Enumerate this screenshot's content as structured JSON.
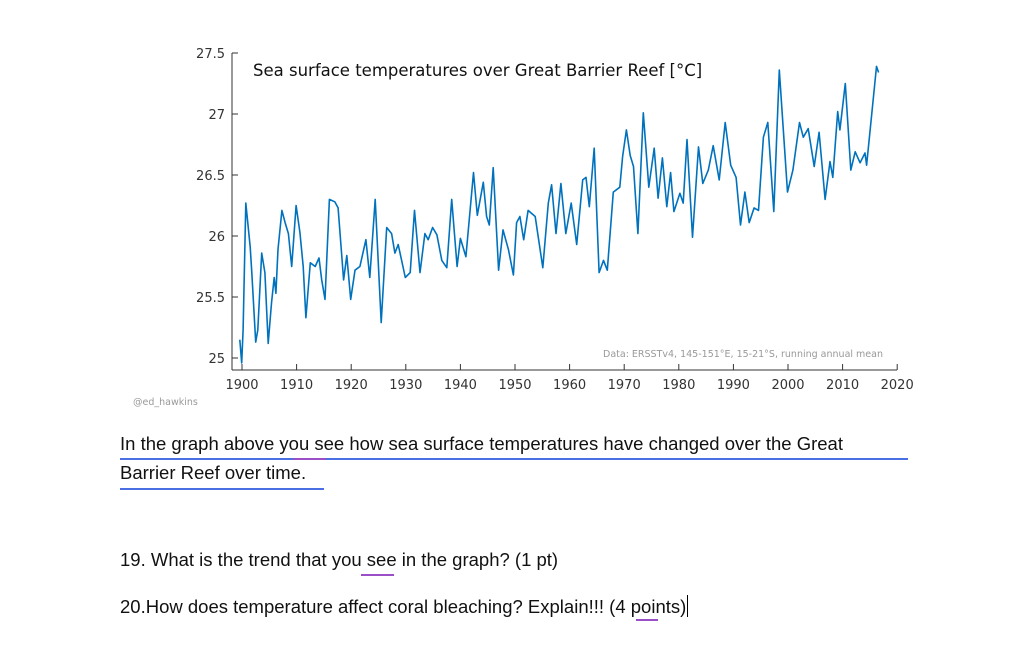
{
  "document": {
    "intro_line1": "In the graph above you see how sea surface temperatures have changed over the Great",
    "intro_line2": "Barrier Reef over time.",
    "question19": "19.  What is the trend that you see in the graph?  (1 pt)",
    "question20": "20.How does temperature affect coral bleaching?  Explain!!! (4 points)",
    "colors": {
      "grammar_underline": "#4a6fe3",
      "spelling_underline": "#9b4fc7"
    }
  },
  "chart_data": {
    "type": "line",
    "title": "Sea surface temperatures over Great Barrier Reef  [°C]",
    "note": "Data: ERSSTv4, 145-151°E, 15-21°S, running annual mean",
    "credit": "@ed_hawkins",
    "xlabel": "",
    "ylabel": "",
    "xlim": [
      1898.2,
      2020
    ],
    "ylim": [
      24.9,
      27.5
    ],
    "xticks": [
      "1900",
      "1910",
      "1920",
      "1930",
      "1940",
      "1950",
      "1960",
      "1970",
      "1980",
      "1990",
      "2000",
      "2010",
      "2020"
    ],
    "yticks": [
      "25",
      "25.5",
      "26",
      "26.5",
      "27",
      "27.5"
    ],
    "grid": false,
    "line_color": "#0072bd",
    "x": [
      1899.6,
      1899.95,
      1900.2,
      1900.7,
      1901.5,
      1901.8,
      1902.5,
      1902.9,
      1903.6,
      1904.2,
      1904.8,
      1905.4,
      1905.9,
      1906.2,
      1906.6,
      1907.3,
      1907.9,
      1908.5,
      1909.1,
      1909.9,
      1910.6,
      1911.2,
      1911.7,
      1912.5,
      1913.4,
      1914.1,
      1914.6,
      1915.2,
      1916.0,
      1917.0,
      1917.6,
      1918.6,
      1919.2,
      1919.9,
      1920.7,
      1921.6,
      1922.7,
      1923.4,
      1924.4,
      1925.5,
      1926.5,
      1927.4,
      1928.0,
      1928.6,
      1929.9,
      1930.8,
      1931.6,
      1932.6,
      1933.5,
      1934.1,
      1934.9,
      1935.7,
      1936.6,
      1937.5,
      1938.4,
      1939.4,
      1940.0,
      1941.0,
      1942.4,
      1943.1,
      1944.2,
      1944.8,
      1945.3,
      1946.0,
      1947.0,
      1947.8,
      1948.8,
      1949.7,
      1950.3,
      1950.9,
      1951.6,
      1952.4,
      1953.7,
      1955.1,
      1956.1,
      1956.7,
      1957.5,
      1958.4,
      1959.3,
      1960.3,
      1961.3,
      1962.4,
      1963.0,
      1963.6,
      1964.5,
      1965.4,
      1966.2,
      1966.9,
      1968.0,
      1969.2,
      1969.7,
      1970.4,
      1971.1,
      1971.7,
      1972.5,
      1973.5,
      1974.5,
      1975.5,
      1976.2,
      1977.0,
      1977.8,
      1978.5,
      1979.1,
      1980.2,
      1980.8,
      1981.5,
      1982.5,
      1983.6,
      1984.4,
      1985.4,
      1986.3,
      1987.4,
      1988.5,
      1989.5,
      1990.5,
      1991.3,
      1992.1,
      1992.9,
      1993.8,
      1994.6,
      1995.5,
      1996.3,
      1997.4,
      1998.4,
      1999.9,
      2000.9,
      2002.1,
      2002.8,
      2003.7,
      2004.8,
      2005.7,
      2006.8,
      2007.7,
      2008.2,
      2009.1,
      2009.5,
      2010.5,
      2011.5,
      2012.3,
      2013.2,
      2014.1,
      2014.4,
      2015.3,
      2016.2,
      2016.6
    ],
    "values": [
      25.15,
      24.96,
      25.23,
      26.27,
      25.91,
      25.7,
      25.13,
      25.23,
      25.86,
      25.7,
      25.12,
      25.45,
      25.66,
      25.53,
      25.89,
      26.21,
      26.11,
      26.02,
      25.75,
      26.25,
      26.03,
      25.75,
      25.33,
      25.78,
      25.75,
      25.82,
      25.64,
      25.48,
      26.3,
      26.28,
      26.23,
      25.64,
      25.84,
      25.48,
      25.72,
      25.75,
      25.97,
      25.66,
      26.3,
      25.29,
      26.07,
      26.02,
      25.86,
      25.93,
      25.66,
      25.7,
      26.21,
      25.7,
      26.02,
      25.97,
      26.07,
      26.01,
      25.8,
      25.74,
      26.3,
      25.75,
      25.98,
      25.83,
      26.52,
      26.17,
      26.44,
      26.16,
      26.09,
      26.56,
      25.72,
      26.05,
      25.89,
      25.68,
      26.11,
      26.16,
      25.97,
      26.21,
      26.16,
      25.74,
      26.27,
      26.42,
      26.02,
      26.43,
      26.02,
      26.27,
      25.93,
      26.46,
      26.48,
      26.24,
      26.72,
      25.7,
      25.8,
      25.72,
      26.36,
      26.4,
      26.65,
      26.87,
      26.66,
      26.57,
      26.02,
      27.01,
      26.4,
      26.72,
      26.31,
      26.64,
      26.24,
      26.52,
      26.2,
      26.35,
      26.27,
      26.79,
      25.99,
      26.73,
      26.43,
      26.54,
      26.74,
      26.46,
      26.93,
      26.58,
      26.48,
      26.09,
      26.36,
      26.11,
      26.23,
      26.21,
      26.81,
      26.93,
      26.2,
      27.36,
      26.36,
      26.54,
      26.93,
      26.81,
      26.88,
      26.57,
      26.85,
      26.3,
      26.61,
      26.48,
      27.02,
      26.87,
      27.25,
      26.54,
      26.69,
      26.6,
      26.68,
      26.58,
      26.98,
      27.39,
      27.34
    ]
  }
}
